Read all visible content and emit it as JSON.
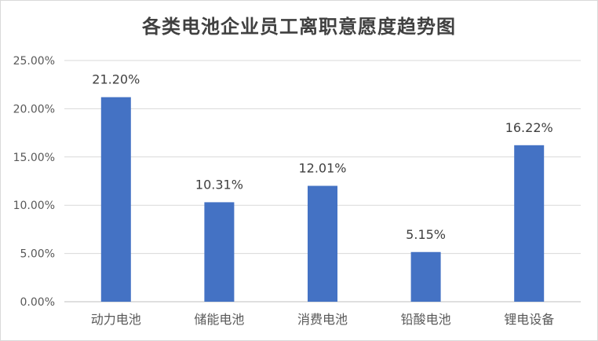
{
  "chart_data": {
    "type": "bar",
    "title": "各类电池企业员工离职意愿度趋势图",
    "categories": [
      "动力电池",
      "储能电池",
      "消费电池",
      "铅酸电池",
      "锂电设备"
    ],
    "values": [
      21.2,
      10.31,
      12.01,
      5.15,
      16.22
    ],
    "data_labels": [
      "21.20%",
      "10.31%",
      "12.01%",
      "5.15%",
      "16.22%"
    ],
    "y_ticks": [
      "0.00%",
      "5.00%",
      "10.00%",
      "15.00%",
      "20.00%",
      "25.00%"
    ],
    "y_tick_values": [
      0,
      5,
      10,
      15,
      20,
      25
    ],
    "ylim": [
      0,
      25
    ],
    "xlabel": "",
    "ylabel": "",
    "grid": true,
    "legend": "none",
    "colors": {
      "bar": "#4472c4",
      "grid": "#d9d9d9",
      "axis": "#bfbfbf"
    }
  }
}
